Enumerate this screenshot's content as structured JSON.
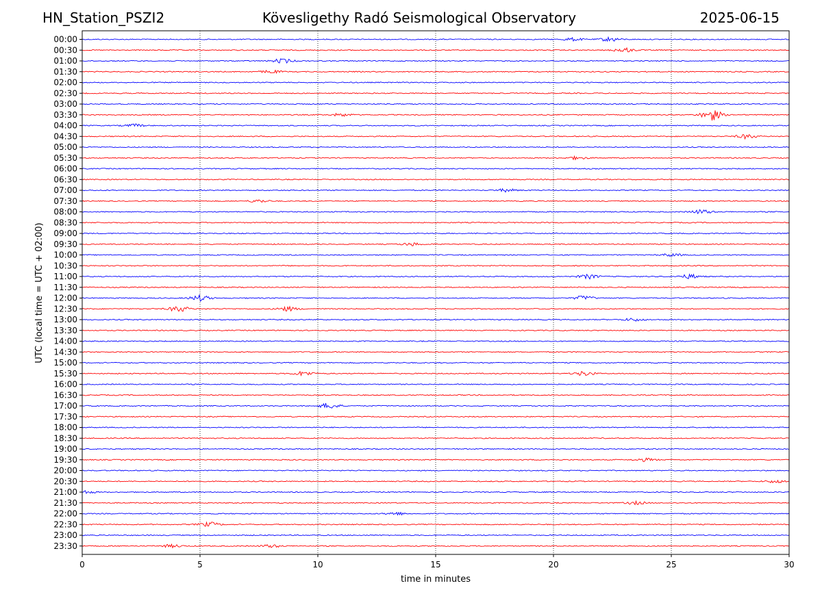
{
  "header": {
    "station": "HN_Station_PSZI2",
    "observatory": "Kövesligethy Radó Seismological Observatory",
    "date": "2025-06-15"
  },
  "chart_data": {
    "type": "line",
    "subtype": "helicorder",
    "xlabel": "time in minutes",
    "ylabel": "UTC (local time = UTC + 02:00)",
    "xlim": [
      0,
      30
    ],
    "xticks": [
      "0",
      "5",
      "10",
      "15",
      "20",
      "25",
      "30"
    ],
    "grid": "vertical dotted at 5, 10, 15, 20, 25 min",
    "colors": {
      "even_rows": "#0000ff",
      "odd_rows": "#ff0000",
      "frame": "#000000"
    },
    "rows": [
      "00:00",
      "00:30",
      "01:00",
      "01:30",
      "02:00",
      "02:30",
      "03:00",
      "03:30",
      "04:00",
      "04:30",
      "05:00",
      "05:30",
      "06:00",
      "06:30",
      "07:00",
      "07:30",
      "08:00",
      "08:30",
      "09:00",
      "09:30",
      "10:00",
      "10:30",
      "11:00",
      "11:30",
      "12:00",
      "12:30",
      "13:00",
      "13:30",
      "14:00",
      "14:30",
      "15:00",
      "15:30",
      "16:00",
      "16:30",
      "17:00",
      "17:30",
      "18:00",
      "18:30",
      "19:00",
      "19:30",
      "20:00",
      "20:30",
      "21:00",
      "21:30",
      "22:00",
      "22:30",
      "23:00",
      "23:30"
    ],
    "notable_bursts": [
      {
        "row": "00:00",
        "minute": 22.4,
        "level": 3
      },
      {
        "row": "00:00",
        "minute": 20.8,
        "level": 2
      },
      {
        "row": "00:30",
        "minute": 23.0,
        "level": 3
      },
      {
        "row": "01:00",
        "minute": 8.5,
        "level": 3
      },
      {
        "row": "01:30",
        "minute": 8.0,
        "level": 2
      },
      {
        "row": "03:30",
        "minute": 26.7,
        "level": 8
      },
      {
        "row": "03:30",
        "minute": 11.0,
        "level": 2
      },
      {
        "row": "04:00",
        "minute": 2.2,
        "level": 2
      },
      {
        "row": "04:30",
        "minute": 28.2,
        "level": 3
      },
      {
        "row": "05:30",
        "minute": 21.0,
        "level": 2
      },
      {
        "row": "07:00",
        "minute": 18.0,
        "level": 2
      },
      {
        "row": "07:30",
        "minute": 7.5,
        "level": 2
      },
      {
        "row": "08:00",
        "minute": 26.3,
        "level": 3
      },
      {
        "row": "09:30",
        "minute": 14.0,
        "level": 2
      },
      {
        "row": "10:00",
        "minute": 25.0,
        "level": 2
      },
      {
        "row": "11:00",
        "minute": 21.5,
        "level": 3
      },
      {
        "row": "11:00",
        "minute": 25.8,
        "level": 3
      },
      {
        "row": "12:00",
        "minute": 5.0,
        "level": 4
      },
      {
        "row": "12:00",
        "minute": 21.3,
        "level": 3
      },
      {
        "row": "12:30",
        "minute": 4.1,
        "level": 4
      },
      {
        "row": "12:30",
        "minute": 8.7,
        "level": 3
      },
      {
        "row": "13:00",
        "minute": 23.4,
        "level": 2
      },
      {
        "row": "15:30",
        "minute": 9.4,
        "level": 3
      },
      {
        "row": "15:30",
        "minute": 21.3,
        "level": 3
      },
      {
        "row": "17:00",
        "minute": 10.5,
        "level": 4
      },
      {
        "row": "19:30",
        "minute": 23.9,
        "level": 2
      },
      {
        "row": "20:30",
        "minute": 29.4,
        "level": 2
      },
      {
        "row": "21:00",
        "minute": 0.1,
        "level": 2
      },
      {
        "row": "21:30",
        "minute": 23.5,
        "level": 2
      },
      {
        "row": "22:00",
        "minute": 13.3,
        "level": 2
      },
      {
        "row": "22:30",
        "minute": 5.4,
        "level": 3
      },
      {
        "row": "23:30",
        "minute": 3.8,
        "level": 2
      },
      {
        "row": "23:30",
        "minute": 8.0,
        "level": 2
      }
    ]
  }
}
